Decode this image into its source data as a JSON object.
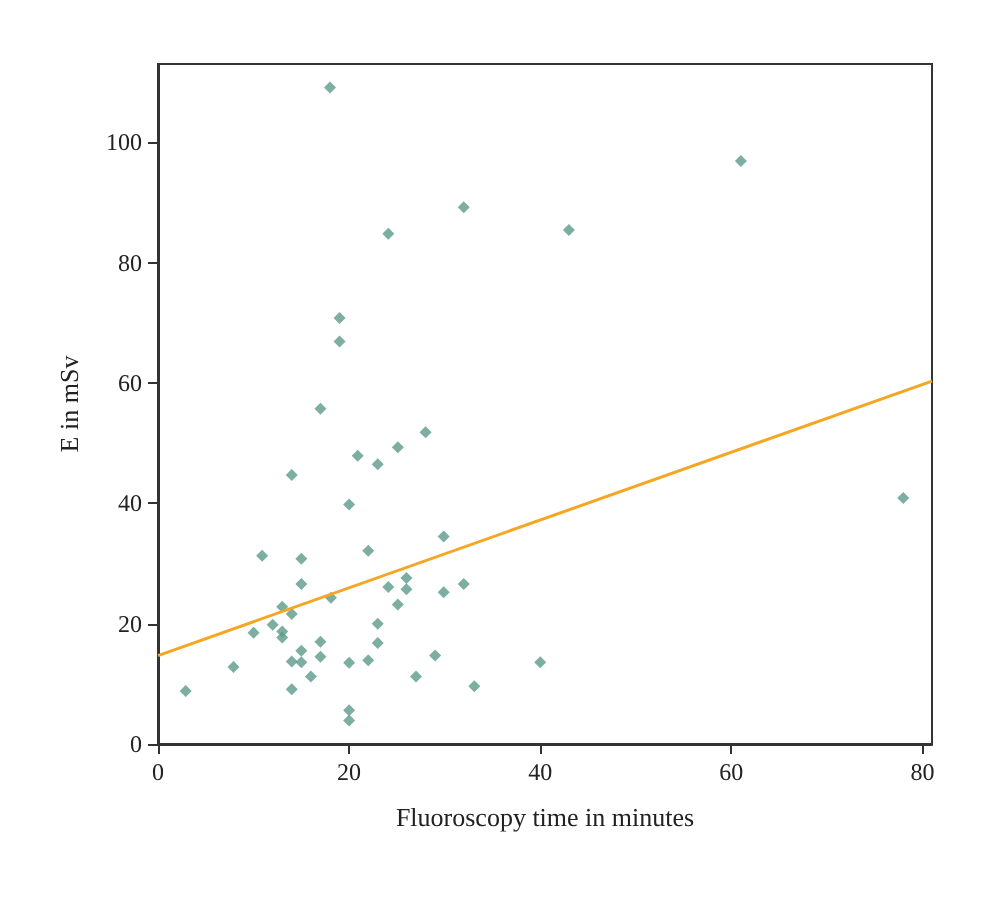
{
  "chart_data": {
    "type": "scatter",
    "xlabel": "Fluoroscopy time in minutes",
    "ylabel": "E in mSv",
    "xlim": [
      0,
      81
    ],
    "ylim": [
      0,
      113
    ],
    "xticks": [
      0,
      20,
      40,
      60,
      80
    ],
    "yticks": [
      0,
      20,
      40,
      60,
      80,
      100
    ],
    "grid": false,
    "marker": "diamond",
    "series": [
      {
        "color": "#5b9a8b",
        "x": [
          17,
          28,
          25.1,
          20.9,
          23,
          14,
          20,
          29.9,
          10.9,
          15,
          22,
          15,
          26,
          24.1,
          26,
          29.9,
          32,
          18.1,
          13,
          14,
          25.1,
          12,
          10,
          13,
          13,
          23,
          23,
          17,
          15,
          17,
          14,
          15,
          20,
          22,
          29,
          16,
          7.9,
          27,
          40,
          33.1,
          2.9,
          14,
          20,
          20,
          18,
          24.1,
          32,
          19,
          19,
          43,
          61,
          78
        ],
        "values": [
          55.7,
          51.8,
          49.3,
          47.9,
          46.5,
          44.7,
          39.8,
          34.5,
          31.3,
          30.8,
          32.1,
          26.6,
          27.6,
          26.1,
          25.7,
          25.2,
          26.6,
          24.3,
          22.8,
          21.6,
          23.2,
          19.8,
          18.5,
          18.7,
          17.7,
          20,
          16.8,
          17,
          15.5,
          14.5,
          13.7,
          13.6,
          13.5,
          13.9,
          14.7,
          11.2,
          12.8,
          11.2,
          13.6,
          9.6,
          8.8,
          9.1,
          5.6,
          3.9,
          109.1,
          84.8,
          89.2,
          70.8,
          66.9,
          85.4,
          96.9,
          40.9
        ]
      },
      {
        "type": "line",
        "color": "#f5a623",
        "x": [
          0,
          81
        ],
        "values": [
          14.7,
          60.3
        ],
        "marker": "none",
        "line_style": "solid"
      }
    ]
  }
}
